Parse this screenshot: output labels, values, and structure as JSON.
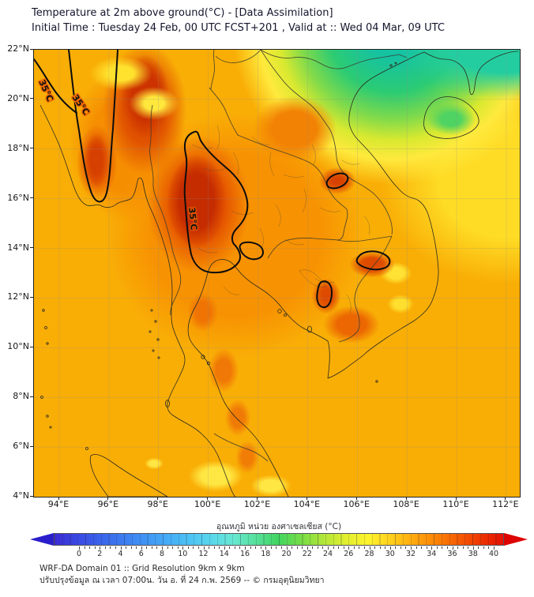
{
  "title": {
    "line1": "Temperature at 2m above ground(°C) - [Data Assimilation]",
    "line2": "Initial Time : Tuesday 24 Feb, 00 UTC FCST+201 , Valid at :: Wed 04 Mar, 09 UTC"
  },
  "map": {
    "lat_ticks": [
      "22°N",
      "20°N",
      "18°N",
      "16°N",
      "14°N",
      "12°N",
      "10°N",
      "8°N",
      "6°N",
      "4°N"
    ],
    "lon_ticks": [
      "94°E",
      "96°E",
      "98°E",
      "100°E",
      "102°E",
      "104°E",
      "106°E",
      "108°E",
      "110°E",
      "112°E"
    ],
    "contour_label": "35°C"
  },
  "colorbar": {
    "label": "อุณหภูมิ หน่วย องศาเซลเซียส (°C)",
    "min": 0,
    "max": 40,
    "tick_step": 2,
    "ticks": [
      0,
      2,
      4,
      6,
      8,
      10,
      12,
      14,
      16,
      18,
      20,
      22,
      24,
      26,
      28,
      30,
      32,
      34,
      36,
      38,
      40
    ],
    "left_arrow_color": "#2a1ecb",
    "right_arrow_color": "#dc0300",
    "stops": [
      {
        "t": 0,
        "c": "#3c2bd3"
      },
      {
        "t": 2,
        "c": "#3948e2"
      },
      {
        "t": 4,
        "c": "#3a62ea"
      },
      {
        "t": 6,
        "c": "#3d7bf0"
      },
      {
        "t": 8,
        "c": "#4093f4"
      },
      {
        "t": 10,
        "c": "#45abf6"
      },
      {
        "t": 12,
        "c": "#4dc2f4"
      },
      {
        "t": 14,
        "c": "#59d7ec"
      },
      {
        "t": 16,
        "c": "#66e8d0"
      },
      {
        "t": 18,
        "c": "#55e09a"
      },
      {
        "t": 20,
        "c": "#41d55f"
      },
      {
        "t": 22,
        "c": "#78dd46"
      },
      {
        "t": 24,
        "c": "#b2e639"
      },
      {
        "t": 26,
        "c": "#e2ef2f"
      },
      {
        "t": 28,
        "c": "#fdf32c"
      },
      {
        "t": 30,
        "c": "#ffcf1c"
      },
      {
        "t": 32,
        "c": "#ffa90e"
      },
      {
        "t": 34,
        "c": "#fb8306"
      },
      {
        "t": 36,
        "c": "#f55c02"
      },
      {
        "t": 38,
        "c": "#ee3501"
      },
      {
        "t": 40,
        "c": "#e51000"
      }
    ]
  },
  "footer": {
    "line1": "WRF-DA Domain 01 :: Grid Resolution 9km x 9km",
    "line2": "ปรับปรุงข้อมูล ณ เวลา 07:00น. วัน อ. ที่ 24 ก.พ. 2569 -- © กรมอุตุนิยมวิทยา"
  },
  "chart_data": {
    "type": "heatmap",
    "title": "Temperature at 2m above ground (°C) - Data Assimilation",
    "units": "°C",
    "scale_min": 0,
    "scale_max": 40,
    "scale_ticks": [
      0,
      2,
      4,
      6,
      8,
      10,
      12,
      14,
      16,
      18,
      20,
      22,
      24,
      26,
      28,
      30,
      32,
      34,
      36,
      38,
      40
    ],
    "lon_range_deg_e": [
      93.0,
      112.6
    ],
    "lat_range_deg_n": [
      4,
      22
    ],
    "contour_level_c": 35,
    "region_estimates_c": {
      "central_thailand_hot_core": 36,
      "eastern_myanmar_hot_band": 36,
      "irrawaddy_delta": 35,
      "northern_vietnam_gulf_of_tonkin": 21,
      "hainan_island": 25,
      "south_china_sea": 31,
      "gulf_of_thailand": 32,
      "andaman_sea": 32,
      "northern_sumatra": 29
    }
  }
}
